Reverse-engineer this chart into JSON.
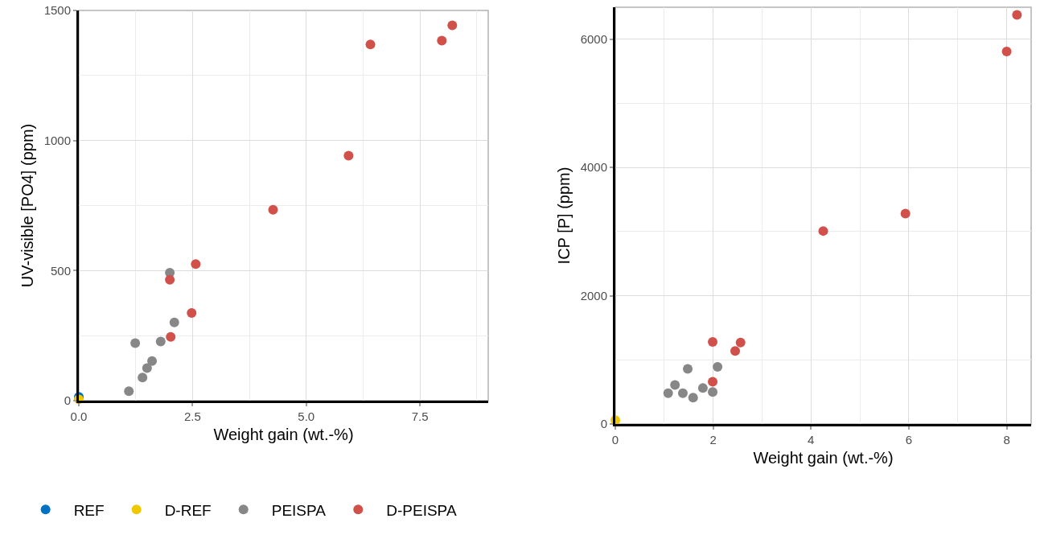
{
  "chart_data": [
    {
      "type": "scatter",
      "xlabel": "Weight gain (wt.-%)",
      "ylabel": "UV-visible [PO4] (ppm)",
      "xlim": [
        0,
        9
      ],
      "ylim": [
        0,
        1500
      ],
      "xticks": [
        {
          "value": 0,
          "label": "0.0"
        },
        {
          "value": 1.25,
          "label": null
        },
        {
          "value": 2.5,
          "label": "2.5"
        },
        {
          "value": 3.75,
          "label": null
        },
        {
          "value": 5,
          "label": "5.0"
        },
        {
          "value": 6.25,
          "label": null
        },
        {
          "value": 7.5,
          "label": "7.5"
        },
        {
          "value": 8.75,
          "label": null
        }
      ],
      "yticks": [
        0,
        {
          "value": 250,
          "label": null
        },
        500,
        {
          "value": 750,
          "label": null
        },
        1000,
        {
          "value": 1250,
          "label": null
        },
        1500
      ],
      "grid": true,
      "legend": "bottom",
      "marker": "circle",
      "series": [
        {
          "name": "REF",
          "color": "#0072c6",
          "x": [
            0
          ],
          "values": [
            15
          ]
        },
        {
          "name": "D-REF",
          "color": "#f0c800",
          "x": [
            0
          ],
          "values": [
            5
          ]
        },
        {
          "name": "PEISPA",
          "color": "#878787",
          "x": [
            2.0,
            2.1,
            1.24,
            1.8,
            1.61,
            1.5,
            1.4,
            1.1
          ],
          "values": [
            492,
            301,
            221,
            227,
            152,
            125,
            89,
            36
          ]
        },
        {
          "name": "D-PEISPA",
          "color": "#d1504a",
          "x": [
            8.21,
            7.98,
            6.41,
            5.93,
            4.27,
            2.57,
            2.0,
            2.48,
            2.02
          ],
          "values": [
            1443,
            1384,
            1369,
            942,
            734,
            525,
            465,
            337,
            245
          ]
        }
      ]
    },
    {
      "type": "scatter",
      "xlabel": "Weight gain (wt.-%)",
      "ylabel": "ICP [P] (ppm)",
      "xlim": [
        0,
        8.5
      ],
      "ylim": [
        0,
        6500
      ],
      "xticks": [
        0,
        {
          "value": 1,
          "label": null
        },
        2,
        {
          "value": 3,
          "label": null
        },
        4,
        {
          "value": 5,
          "label": null
        },
        6,
        {
          "value": 7,
          "label": null
        },
        8
      ],
      "yticks": [
        0,
        {
          "value": 1000,
          "label": null
        },
        2000,
        {
          "value": 3000,
          "label": null
        },
        4000,
        {
          "value": 5000,
          "label": null
        },
        6000
      ],
      "grid": true,
      "marker": "circle",
      "series": [
        {
          "color": "#f0c800",
          "x": [
            0
          ],
          "values": [
            60
          ]
        },
        {
          "color": "#878787",
          "x": [
            2.09,
            1.48,
            1.22,
            1.08,
            1.38,
            1.59,
            1.79,
            1.99
          ],
          "values": [
            890,
            860,
            610,
            480,
            480,
            410,
            560,
            500
          ]
        },
        {
          "color": "#d1504a",
          "x": [
            8.21,
            8.0,
            5.93,
            4.25,
            1.99,
            2.56,
            2.45,
            1.99
          ],
          "values": [
            6380,
            5810,
            3280,
            3010,
            1280,
            1270,
            1140,
            660
          ]
        }
      ]
    }
  ]
}
